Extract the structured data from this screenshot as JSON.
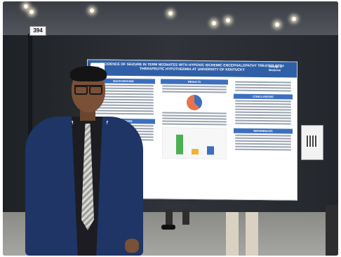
{
  "booth": {
    "number": "394"
  },
  "poster": {
    "title": "INCIDENCE OF SEIZURE IN TERM NEONATES WITH HYPOXIC ISCHEMIC ENCEPHALOPATHY TREATED WITH THERAPEUTIC HYPOTHERMIA AT UNIVERSITY OF KENTUCKY",
    "institution_logo": "College of Medicine",
    "sections": {
      "background": "BACKGROUND",
      "results": "RESULTS",
      "conclusions": "CONCLUSIONS",
      "objectives": "OBJECTIVES",
      "references": "REFERENCES"
    }
  },
  "colors": {
    "poster_banner": "#2f5fa6",
    "section_header": "#3c6fbf",
    "jacket": "#1f3566"
  }
}
